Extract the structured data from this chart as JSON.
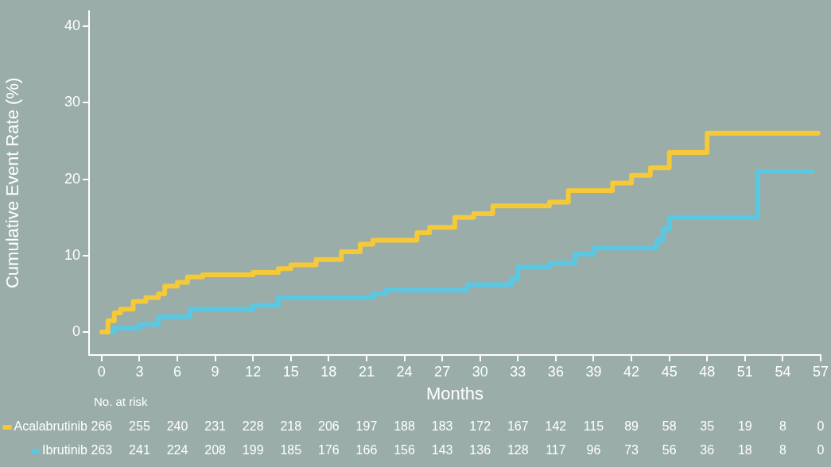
{
  "chart_data": {
    "type": "step",
    "xlabel": "Months",
    "ylabel": "Cumulative Event Rate (%)",
    "xlim": [
      -1,
      57
    ],
    "xticks": [
      0,
      3,
      6,
      9,
      12,
      15,
      18,
      21,
      24,
      27,
      30,
      33,
      36,
      39,
      42,
      45,
      48,
      51,
      54,
      57
    ],
    "ylim": [
      -3,
      42
    ],
    "yticks": [
      0,
      10,
      20,
      30,
      40
    ],
    "grid": false,
    "legend": "bottom left",
    "marker": "none",
    "line_style": "solid",
    "series": [
      {
        "name": "Acalabrutinib",
        "color": "#f5c938",
        "x": [
          0,
          0.5,
          1,
          1.5,
          2.5,
          3.5,
          4.5,
          5,
          6,
          6.8,
          8,
          12,
          14,
          15,
          17,
          19,
          20.5,
          21.5,
          25,
          26,
          28,
          29.5,
          31,
          35.5,
          37,
          40.5,
          42,
          43.5,
          45,
          48,
          56.8
        ],
        "values": [
          0,
          1.5,
          2.5,
          3,
          4,
          4.5,
          5,
          6,
          6.5,
          7.2,
          7.5,
          7.8,
          8.3,
          8.8,
          9.5,
          10.5,
          11.5,
          12,
          13,
          13.7,
          15,
          15.5,
          16.5,
          17,
          18.5,
          19.5,
          20.5,
          21.5,
          23.5,
          26,
          26
        ]
      },
      {
        "name": "Ibrutinib",
        "color": "#5bc8e3",
        "x": [
          0.8,
          1,
          3,
          4.5,
          7,
          12,
          14,
          21.5,
          22.5,
          29,
          32.5,
          33,
          35.5,
          37.5,
          39,
          44,
          44.5,
          45,
          52,
          56.3
        ],
        "values": [
          0,
          0.5,
          1,
          2,
          3,
          3.5,
          4.5,
          5,
          5.5,
          6.2,
          7,
          8.5,
          9,
          10.2,
          11,
          12,
          13.5,
          15,
          21,
          21
        ]
      }
    ],
    "annotations": [
      "No. at risk",
      "266 255 240 231 228 218 206 197 188 183 172 167 142 115 89 58 35 19 8 0",
      "263 241 224 208 199 185 176 166 156 143 136 128 117 96 73 56 36 18 8 0"
    ]
  }
}
